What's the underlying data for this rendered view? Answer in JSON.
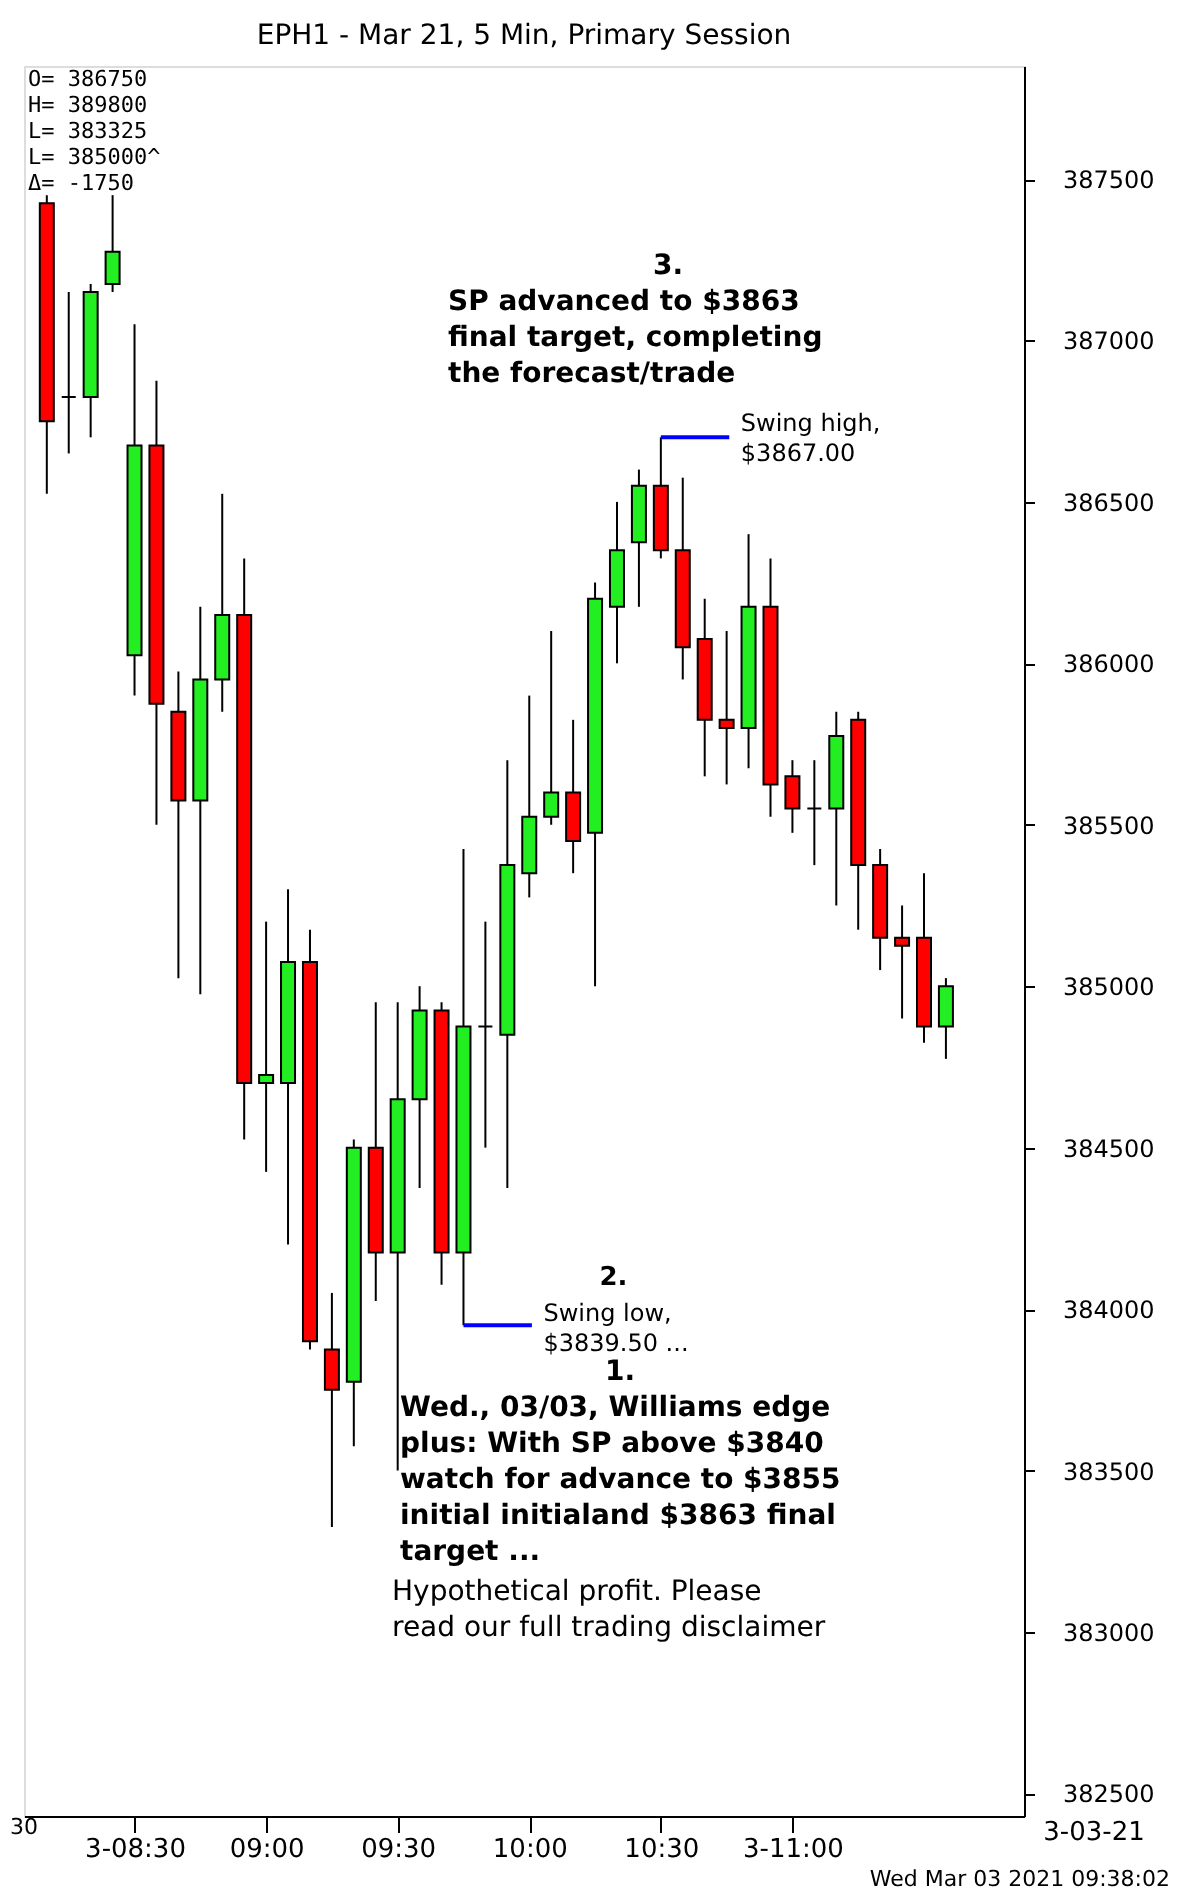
{
  "chart_data": {
    "type": "candlestick",
    "title": "EPH1 - Mar 21, 5 Min, Primary Session",
    "x": [
      8.1667,
      8.25,
      8.3333,
      8.4167,
      8.5,
      8.5833,
      8.6667,
      8.75,
      8.8333,
      8.9167,
      9,
      9.0833,
      9.1667,
      9.25,
      9.3333,
      9.4167,
      9.5,
      9.5833,
      9.6667,
      9.75,
      9.8333,
      9.9167,
      10,
      10.0833,
      10.1667,
      10.25,
      10.3333,
      10.4167,
      10.5,
      10.5833,
      10.6667,
      10.75,
      10.8333,
      10.9167,
      11,
      11.0833,
      11.1667,
      11.25,
      11.3333,
      11.4167,
      11.5,
      11.5833
    ],
    "ohlc": [
      [
        387425,
        387450,
        386525,
        386750
      ],
      [
        386825,
        387150,
        386650,
        386825
      ],
      [
        386825,
        387175,
        386700,
        387150
      ],
      [
        387175,
        387450,
        387150,
        387275
      ],
      [
        386025,
        387050,
        385900,
        386675
      ],
      [
        386675,
        386875,
        385500,
        385875
      ],
      [
        385850,
        385975,
        385025,
        385575
      ],
      [
        385575,
        386175,
        384975,
        385950
      ],
      [
        385950,
        386525,
        385850,
        386150
      ],
      [
        386150,
        386325,
        384525,
        384700
      ],
      [
        384700,
        385200,
        384425,
        384725
      ],
      [
        384700,
        385300,
        384200,
        385075
      ],
      [
        385075,
        385175,
        383875,
        383900
      ],
      [
        383875,
        384050,
        383325,
        383750
      ],
      [
        383775,
        384525,
        383575,
        384500
      ],
      [
        384500,
        384950,
        384025,
        384175
      ],
      [
        384175,
        384950,
        383500,
        384650
      ],
      [
        384650,
        385000,
        384375,
        384925
      ],
      [
        384925,
        384950,
        384075,
        384175
      ],
      [
        384175,
        385425,
        383950,
        384875
      ],
      [
        384875,
        385200,
        384500,
        384875
      ],
      [
        384850,
        385700,
        384375,
        385375
      ],
      [
        385350,
        385900,
        385275,
        385525
      ],
      [
        385525,
        386100,
        385500,
        385600
      ],
      [
        385600,
        385825,
        385350,
        385450
      ],
      [
        385475,
        386250,
        385000,
        386200
      ],
      [
        386175,
        386500,
        386000,
        386350
      ],
      [
        386375,
        386600,
        386175,
        386550
      ],
      [
        386550,
        386700,
        386325,
        386350
      ],
      [
        386350,
        386575,
        385950,
        386050
      ],
      [
        386075,
        386200,
        385650,
        385825
      ],
      [
        385825,
        386100,
        385625,
        385800
      ],
      [
        385800,
        386400,
        385675,
        386175
      ],
      [
        386175,
        386325,
        385525,
        385625
      ],
      [
        385650,
        385700,
        385475,
        385550
      ],
      [
        385550,
        385700,
        385375,
        385550
      ],
      [
        385550,
        385850,
        385250,
        385775
      ],
      [
        385825,
        385850,
        385175,
        385375
      ],
      [
        385375,
        385425,
        385050,
        385150
      ],
      [
        385150,
        385250,
        384900,
        385125
      ],
      [
        385150,
        385350,
        384825,
        384875
      ],
      [
        384875,
        385025,
        384775,
        385000
      ]
    ],
    "colors": [
      "#ff0000",
      "#000000",
      "#22ee22",
      "#22ee22",
      "#22ee22",
      "#ff0000",
      "#ff0000",
      "#22ee22",
      "#22ee22",
      "#ff0000",
      "#22ee22",
      "#22ee22",
      "#ff0000",
      "#ff0000",
      "#22ee22",
      "#ff0000",
      "#22ee22",
      "#22ee22",
      "#ff0000",
      "#22ee22",
      "#000000",
      "#22ee22",
      "#22ee22",
      "#22ee22",
      "#ff0000",
      "#22ee22",
      "#22ee22",
      "#22ee22",
      "#ff0000",
      "#ff0000",
      "#ff0000",
      "#ff0000",
      "#22ee22",
      "#ff0000",
      "#ff0000",
      "#000000",
      "#22ee22",
      "#ff0000",
      "#ff0000",
      "#ff0000",
      "#ff0000",
      "#22ee22"
    ],
    "xlim": [
      8.08,
      11.88
    ],
    "xticks": [
      {
        "value": 8.5,
        "label": "3-08:30"
      },
      {
        "value": 9,
        "label": "09:00"
      },
      {
        "value": 9.5,
        "label": "09:30"
      },
      {
        "value": 10,
        "label": "10:00"
      },
      {
        "value": 10.5,
        "label": "10:30"
      },
      {
        "value": 11,
        "label": "3-11:00"
      }
    ],
    "ylim": [
      382430,
      387850
    ],
    "yticks": [
      382500,
      383000,
      383500,
      384000,
      384500,
      385000,
      385500,
      386000,
      386500,
      387000,
      387500
    ],
    "grid": false,
    "annotations": [
      "O=  386750\nH=  389800\nL=  383325\nL=  385000^\nΔ=    -1750",
      {
        "text": "Swing high,\n$3867.00",
        "x": 10.5,
        "y": 386700
      },
      {
        "text": "2.\nSwing low,\n$3839.50 ...",
        "x": 9.75,
        "y": 383950
      },
      "3.\nSP advanced to $3863\nfinal target, completing\nthe forecast/trade",
      "1.\nWed., 03/03, Williams edge\nplus: With SP above $3840\nwatch for advance to $3855\ninitial initialand $3863 final\ntarget ...",
      "Hypothetical profit. Please\nread our full trading disclaimer",
      "3-03-21",
      "30",
      "Wed Mar 03 2021 09:38:02"
    ]
  }
}
